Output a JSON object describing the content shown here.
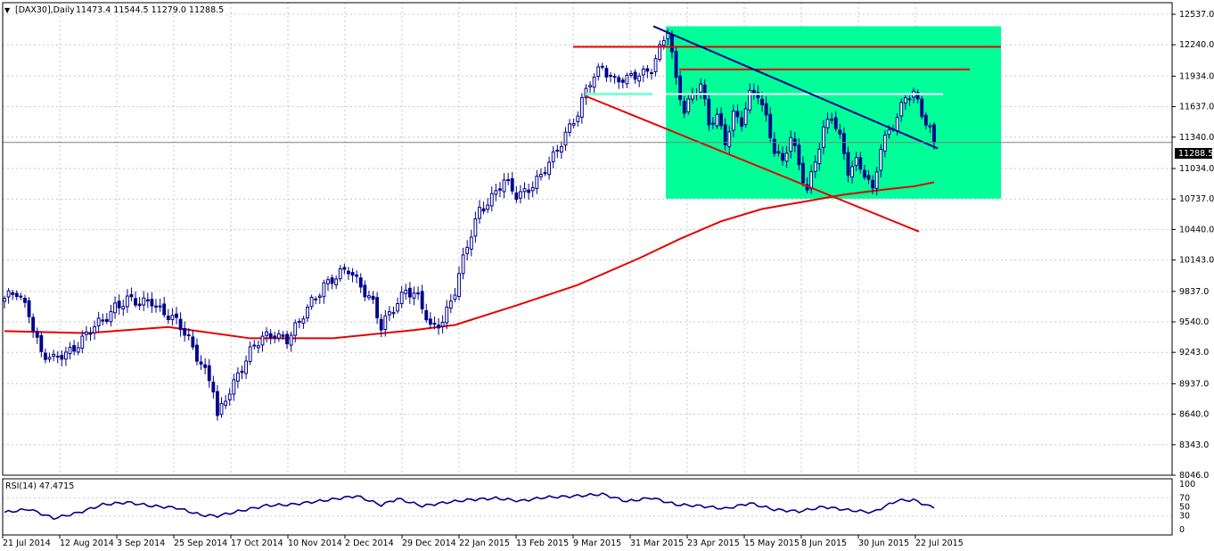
{
  "header": {
    "symbol_label": "[DAX30],Daily",
    "ohlc_values": "11473.4 11544.5 11279.0 11288.5"
  },
  "current_price_label": "11288.5",
  "rsi_label": "RSI(14) 47.4715",
  "colors": {
    "candle": "#00008b",
    "ma": "#e60000",
    "resistance": "#e60000",
    "downtrend": "#00008b",
    "zone": "#00ff99",
    "support_white": "#ffffff",
    "support_cyan": "#7fffd4",
    "rsi_line": "#00008b",
    "grid": "#c7c7c7"
  },
  "chart_data": [
    {
      "type": "candlestick",
      "title": "[DAX30],Daily",
      "ylim": [
        8046,
        12650
      ],
      "y_ticks": [
        "12537.0",
        "12240.0",
        "11934.0",
        "11637.0",
        "11340.0",
        "11034.0",
        "10737.0",
        "10440.0",
        "10143.0",
        "9837.0",
        "9540.0",
        "9243.0",
        "8937.0",
        "8640.0",
        "8343.0",
        "8046.0"
      ],
      "y_tick_values": [
        12537,
        12240,
        11934,
        11637,
        11340,
        11034,
        10737,
        10440,
        10143,
        9837,
        9540,
        9243,
        8937,
        8640,
        8343,
        8046
      ],
      "x_ticks": [
        "21 Jul 2014",
        "12 Aug 2014",
        "3 Sep 2014",
        "25 Sep 2014",
        "17 Oct 2014",
        "10 Nov 2014",
        "2 Dec 2014",
        "29 Dec 2014",
        "22 Jan 2015",
        "13 Feb 2015",
        "9 Mar 2015",
        "31 Mar 2015",
        "23 Apr 2015",
        "15 May 2015",
        "8 Jun 2015",
        "30 Jun 2015",
        "22 Jul 2015"
      ],
      "price_path": [
        [
          0,
          9770
        ],
        [
          3,
          9800
        ],
        [
          6,
          9640
        ],
        [
          9,
          9250
        ],
        [
          12,
          9150
        ],
        [
          15,
          9230
        ],
        [
          18,
          9350
        ],
        [
          21,
          9450
        ],
        [
          24,
          9530
        ],
        [
          27,
          9710
        ],
        [
          30,
          9760
        ],
        [
          33,
          9690
        ],
        [
          36,
          9760
        ],
        [
          39,
          9640
        ],
        [
          42,
          9520
        ],
        [
          45,
          9370
        ],
        [
          48,
          9160
        ],
        [
          51,
          8880
        ],
        [
          52,
          8580
        ],
        [
          54,
          8780
        ],
        [
          57,
          9050
        ],
        [
          60,
          9250
        ],
        [
          63,
          9360
        ],
        [
          66,
          9440
        ],
        [
          69,
          9380
        ],
        [
          72,
          9510
        ],
        [
          75,
          9740
        ],
        [
          78,
          9920
        ],
        [
          81,
          9960
        ],
        [
          84,
          10040
        ],
        [
          87,
          9920
        ],
        [
          90,
          9720
        ],
        [
          92,
          9460
        ],
        [
          95,
          9680
        ],
        [
          98,
          9880
        ],
        [
          101,
          9760
        ],
        [
          104,
          9470
        ],
        [
          107,
          9580
        ],
        [
          110,
          9840
        ],
        [
          113,
          10260
        ],
        [
          116,
          10650
        ],
        [
          119,
          10760
        ],
        [
          122,
          10890
        ],
        [
          125,
          10780
        ],
        [
          128,
          10860
        ],
        [
          131,
          10940
        ],
        [
          134,
          11140
        ],
        [
          137,
          11400
        ],
        [
          140,
          11570
        ],
        [
          143,
          11860
        ],
        [
          146,
          12050
        ],
        [
          149,
          11900
        ],
        [
          152,
          11880
        ],
        [
          155,
          11960
        ],
        [
          158,
          12030
        ],
        [
          160,
          12190
        ],
        [
          162,
          12360
        ],
        [
          164,
          11880
        ],
        [
          166,
          11620
        ],
        [
          168,
          11780
        ],
        [
          170,
          11850
        ],
        [
          172,
          11440
        ],
        [
          174,
          11530
        ],
        [
          176,
          11320
        ],
        [
          178,
          11580
        ],
        [
          180,
          11480
        ],
        [
          182,
          11720
        ],
        [
          184,
          11760
        ],
        [
          186,
          11540
        ],
        [
          188,
          11240
        ],
        [
          190,
          11080
        ],
        [
          192,
          11320
        ],
        [
          194,
          11060
        ],
        [
          196,
          10840
        ],
        [
          198,
          11140
        ],
        [
          200,
          11400
        ],
        [
          202,
          11520
        ],
        [
          204,
          11320
        ],
        [
          206,
          11040
        ],
        [
          208,
          11120
        ],
        [
          210,
          10980
        ],
        [
          212,
          10780
        ],
        [
          214,
          11240
        ],
        [
          216,
          11420
        ],
        [
          218,
          11560
        ],
        [
          220,
          11720
        ],
        [
          222,
          11740
        ],
        [
          224,
          11560
        ],
        [
          226,
          11440
        ],
        [
          227,
          11288
        ]
      ],
      "moving_average": [
        [
          0,
          9450
        ],
        [
          20,
          9430
        ],
        [
          40,
          9490
        ],
        [
          60,
          9380
        ],
        [
          80,
          9380
        ],
        [
          100,
          9460
        ],
        [
          110,
          9510
        ],
        [
          125,
          9700
        ],
        [
          140,
          9900
        ],
        [
          155,
          10160
        ],
        [
          165,
          10350
        ],
        [
          175,
          10520
        ],
        [
          185,
          10640
        ],
        [
          195,
          10710
        ],
        [
          205,
          10780
        ],
        [
          215,
          10830
        ],
        [
          222,
          10860
        ],
        [
          227,
          10900
        ]
      ],
      "levels": {
        "resistance_top": 12220,
        "resistance_second": 12000,
        "support_white": 11760,
        "support_cyan": 11760,
        "zone_top": 12420,
        "zone_bottom": 10740,
        "downtrend_start": 12420,
        "downtrend_end": 11230,
        "channel_low_start": 11740,
        "channel_low_end": 10420
      }
    },
    {
      "type": "line",
      "title": "RSI(14) 47.4715",
      "ylim": [
        0,
        100
      ],
      "y_ticks": [
        "100",
        "70",
        "50",
        "30",
        "0"
      ],
      "y_tick_values": [
        100,
        70,
        50,
        30,
        0
      ],
      "values": [
        [
          0,
          38
        ],
        [
          6,
          45
        ],
        [
          12,
          25
        ],
        [
          18,
          37
        ],
        [
          24,
          55
        ],
        [
          30,
          60
        ],
        [
          36,
          52
        ],
        [
          42,
          48
        ],
        [
          48,
          32
        ],
        [
          52,
          30
        ],
        [
          58,
          42
        ],
        [
          64,
          53
        ],
        [
          70,
          55
        ],
        [
          78,
          64
        ],
        [
          86,
          74
        ],
        [
          92,
          54
        ],
        [
          96,
          68
        ],
        [
          102,
          52
        ],
        [
          108,
          60
        ],
        [
          114,
          66
        ],
        [
          120,
          69
        ],
        [
          126,
          63
        ],
        [
          132,
          71
        ],
        [
          138,
          73
        ],
        [
          146,
          78
        ],
        [
          152,
          62
        ],
        [
          158,
          70
        ],
        [
          164,
          55
        ],
        [
          170,
          52
        ],
        [
          176,
          46
        ],
        [
          182,
          58
        ],
        [
          188,
          44
        ],
        [
          194,
          40
        ],
        [
          200,
          50
        ],
        [
          206,
          43
        ],
        [
          212,
          38
        ],
        [
          218,
          64
        ],
        [
          222,
          65
        ],
        [
          227,
          47
        ]
      ]
    }
  ]
}
